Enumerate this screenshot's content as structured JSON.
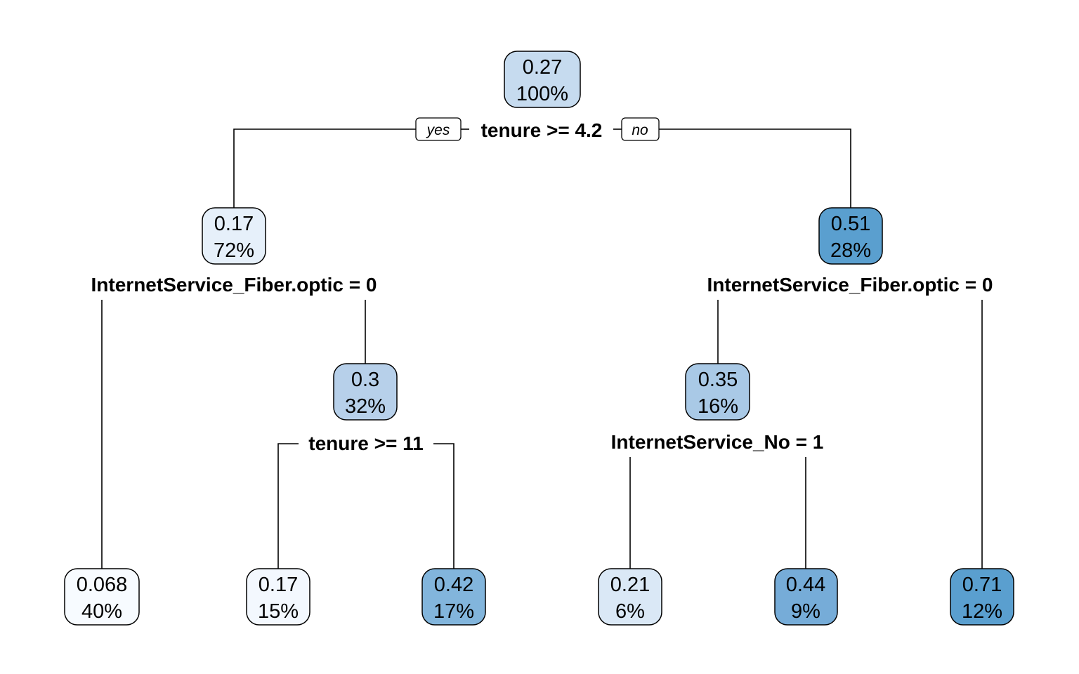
{
  "tree": {
    "yes_label": "yes",
    "no_label": "no",
    "nodes": {
      "root": {
        "value": "0.27",
        "percent": "100%",
        "fill": "#c6dbef"
      },
      "n2": {
        "value": "0.17",
        "percent": "72%",
        "fill": "#e6f0fa"
      },
      "n3": {
        "value": "0.51",
        "percent": "28%",
        "fill": "#5a9fcf"
      },
      "n5": {
        "value": "0.3",
        "percent": "32%",
        "fill": "#b7d0ea"
      },
      "n6": {
        "value": "0.35",
        "percent": "16%",
        "fill": "#a9c9e6"
      },
      "leaf1": {
        "value": "0.068",
        "percent": "40%",
        "fill": "#f7fbff"
      },
      "leaf2": {
        "value": "0.17",
        "percent": "15%",
        "fill": "#f3f8fe"
      },
      "leaf3": {
        "value": "0.42",
        "percent": "17%",
        "fill": "#82b5dc"
      },
      "leaf4": {
        "value": "0.21",
        "percent": "6%",
        "fill": "#dae8f6"
      },
      "leaf5": {
        "value": "0.44",
        "percent": "9%",
        "fill": "#76acd8"
      },
      "leaf6": {
        "value": "0.71",
        "percent": "12%",
        "fill": "#5a9fcf"
      }
    },
    "splits": {
      "root": "tenure >= 4.2",
      "n2": "InternetService_Fiber.optic = 0",
      "n3": "InternetService_Fiber.optic = 0",
      "n5": "tenure >= 11",
      "n6": "InternetService_No = 1"
    }
  }
}
